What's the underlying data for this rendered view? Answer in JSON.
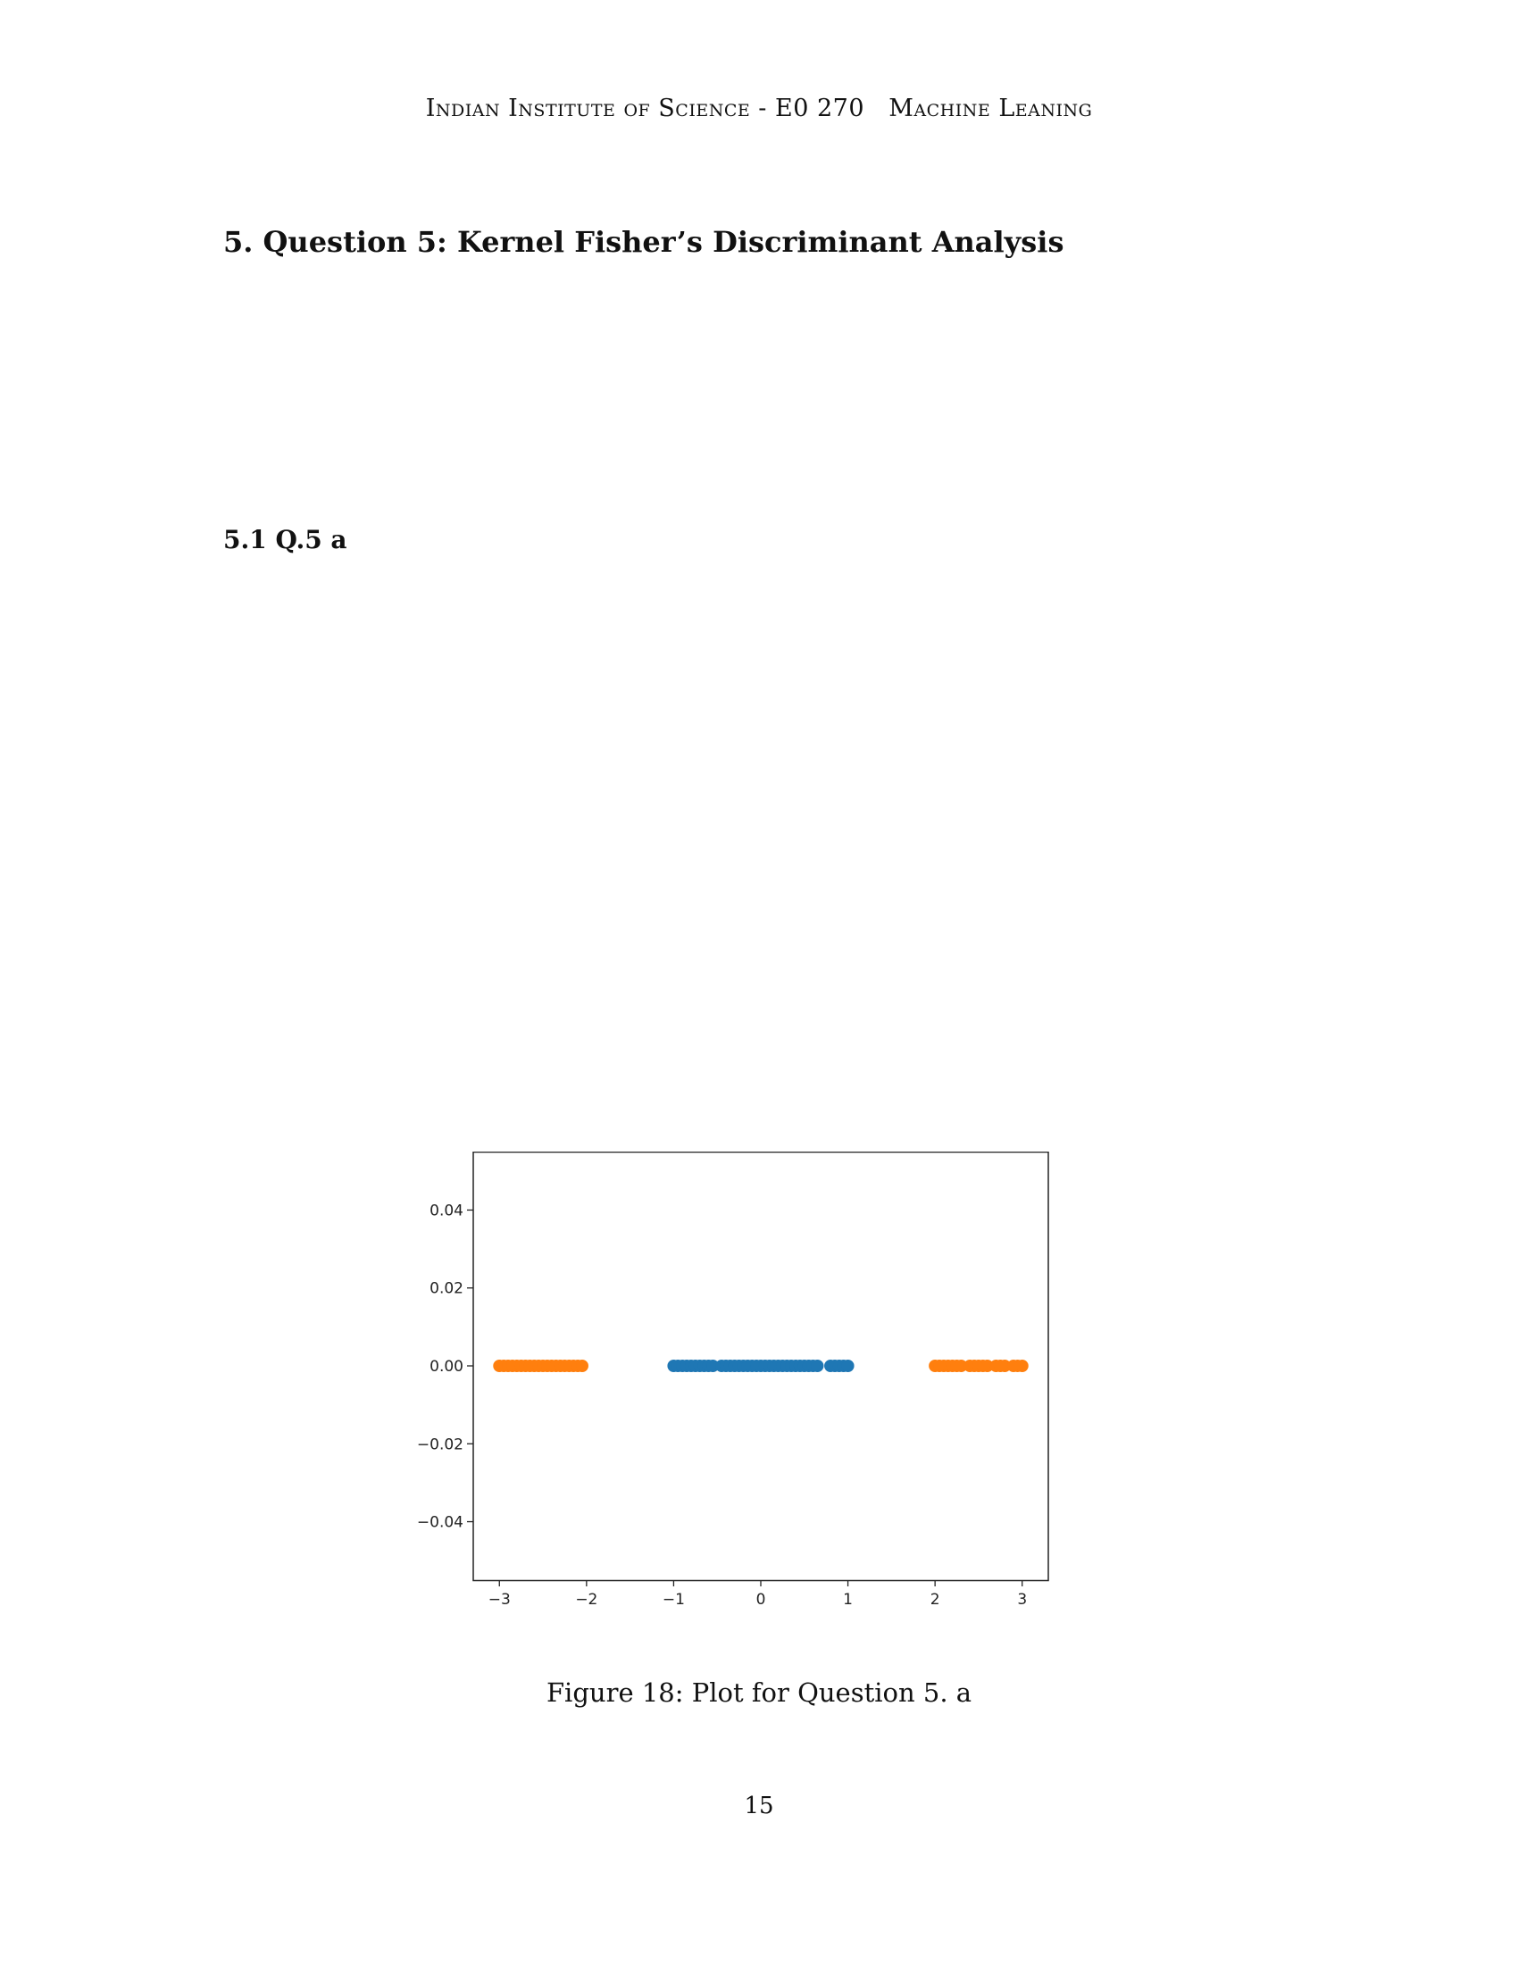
{
  "header": {
    "left": "Indian Institute of Science - E0 270",
    "right": "Machine Leaning"
  },
  "section": {
    "title": "5.  Question 5: Kernel Fisher’s Discriminant Analysis"
  },
  "subsection": {
    "title": "5.1  Q.5 a"
  },
  "figure": {
    "caption": "Figure 18: Plot for Question 5. a"
  },
  "page_number": "15",
  "chart_data": {
    "type": "scatter",
    "title": "",
    "xlabel": "",
    "ylabel": "",
    "xlim": [
      -3.3,
      3.3
    ],
    "ylim": [
      -0.055,
      0.055
    ],
    "xticks": [
      -3,
      -2,
      -1,
      0,
      1,
      2,
      3
    ],
    "xtick_labels": [
      "−3",
      "−2",
      "−1",
      "0",
      "1",
      "2",
      "3"
    ],
    "yticks": [
      0.04,
      0.02,
      0.0,
      -0.02,
      -0.04
    ],
    "ytick_labels": [
      "0.04",
      "0.02",
      "0.00",
      "−0.02",
      "−0.04"
    ],
    "grid": false,
    "series": [
      {
        "color": "#ff7f0e",
        "x": [
          -3.0,
          -2.95,
          -2.9,
          -2.85,
          -2.8,
          -2.75,
          -2.7,
          -2.65,
          -2.6,
          -2.55,
          -2.5,
          -2.45,
          -2.4,
          -2.35,
          -2.3,
          -2.25,
          -2.2,
          -2.15,
          -2.1,
          -2.05,
          2.0,
          2.05,
          2.1,
          2.15,
          2.2,
          2.25,
          2.3,
          2.4,
          2.45,
          2.5,
          2.55,
          2.6,
          2.7,
          2.75,
          2.8,
          2.9,
          2.95,
          3.0
        ],
        "y": [
          0,
          0,
          0,
          0,
          0,
          0,
          0,
          0,
          0,
          0,
          0,
          0,
          0,
          0,
          0,
          0,
          0,
          0,
          0,
          0,
          0,
          0,
          0,
          0,
          0,
          0,
          0,
          0,
          0,
          0,
          0,
          0,
          0,
          0,
          0,
          0,
          0,
          0
        ]
      },
      {
        "color": "#1f77b4",
        "x": [
          -1.0,
          -0.95,
          -0.9,
          -0.85,
          -0.8,
          -0.75,
          -0.7,
          -0.65,
          -0.6,
          -0.55,
          -0.45,
          -0.4,
          -0.35,
          -0.3,
          -0.25,
          -0.2,
          -0.15,
          -0.1,
          -0.05,
          0.0,
          0.05,
          0.1,
          0.15,
          0.2,
          0.25,
          0.3,
          0.35,
          0.4,
          0.45,
          0.5,
          0.55,
          0.6,
          0.65,
          0.8,
          0.85,
          0.9,
          0.95,
          1.0
        ],
        "y": [
          0,
          0,
          0,
          0,
          0,
          0,
          0,
          0,
          0,
          0,
          0,
          0,
          0,
          0,
          0,
          0,
          0,
          0,
          0,
          0,
          0,
          0,
          0,
          0,
          0,
          0,
          0,
          0,
          0,
          0,
          0,
          0,
          0,
          0,
          0,
          0,
          0,
          0
        ]
      }
    ]
  }
}
